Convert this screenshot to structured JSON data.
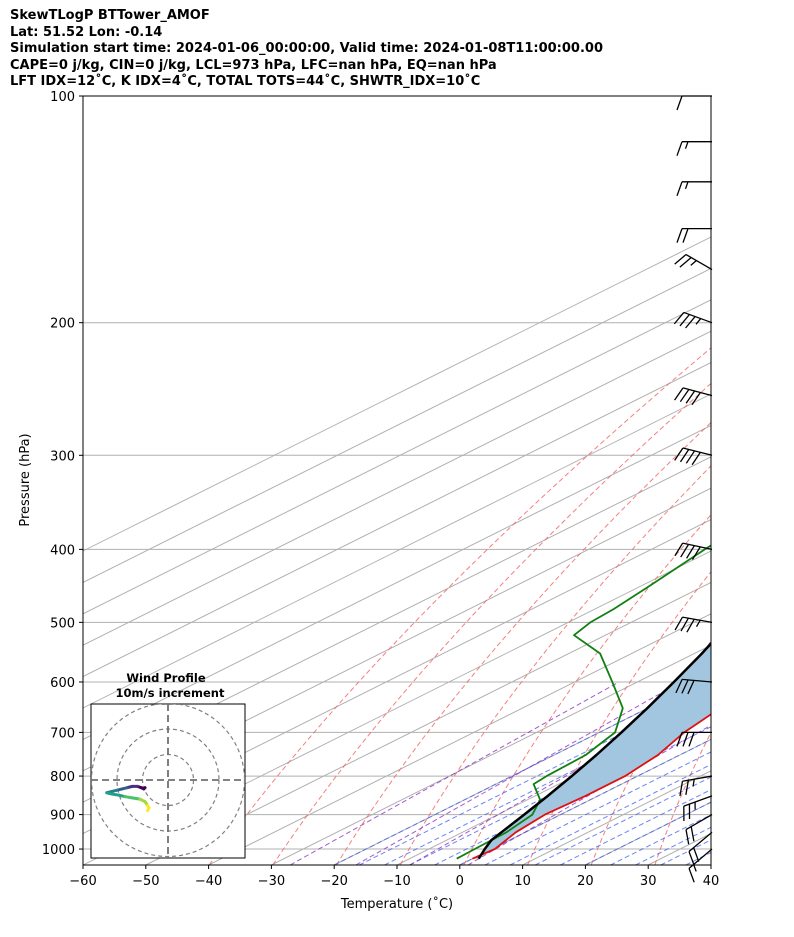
{
  "header": {
    "line1": "SkewTLogP BTTower_AMOF",
    "line2": "Lat: 51.52   Lon: -0.14",
    "line3": "Simulation start time: 2024-01-06_00:00:00, Valid time: 2024-01-08T11:00:00.00",
    "line4": "CAPE=0 j/kg, CIN=0 j/kg, LCL=973 hPa, LFC=nan hPa, EQ=nan hPa",
    "line5": "LFT IDX=12˚C, K IDX=4˚C, TOTAL TOTS=44˚C, SHWTR_IDX=10˚C"
  },
  "colors": {
    "temperature": "#e01010",
    "dewpoint": "#108010",
    "parcel": "#000000",
    "shade": "#a2c6df",
    "dry_adiabat": "#f06060",
    "moist_adiabat": "#3a5cf0",
    "mixing_ratio": "#9030c0",
    "isotherm": "#b0b0b0"
  },
  "chart_data": {
    "type": "line",
    "subtype": "skew-t log-p",
    "xlabel": "Temperature (˚C)",
    "ylabel": "Pressure (hPa)",
    "xlim": [
      -60,
      40
    ],
    "ylim": [
      1050,
      100
    ],
    "y_scale": "log",
    "x_ticks": [
      "−60",
      "−50",
      "−40",
      "−30",
      "−20",
      "−10",
      "0",
      "10",
      "20",
      "30",
      "40"
    ],
    "x_tick_values": [
      -60,
      -50,
      -40,
      -30,
      -20,
      -10,
      0,
      10,
      20,
      30,
      40
    ],
    "y_ticks": [
      "1000",
      "900",
      "800",
      "700",
      "600",
      "500",
      "400",
      "300",
      "200",
      "100"
    ],
    "y_tick_values": [
      1000,
      900,
      800,
      700,
      600,
      500,
      400,
      300,
      200,
      100
    ],
    "grid": true,
    "series": [
      {
        "key": "temperature",
        "points": [
          [
            1030,
            0.0
          ],
          [
            1000,
            0.5
          ],
          [
            950,
            -1.5
          ],
          [
            900,
            -2.5
          ],
          [
            850,
            -2.0
          ],
          [
            800,
            -2.0
          ],
          [
            750,
            -3.5
          ],
          [
            700,
            -6.5
          ],
          [
            650,
            -8.5
          ],
          [
            600,
            -11.5
          ],
          [
            550,
            -14.5
          ],
          [
            500,
            -17.5
          ],
          [
            450,
            -22.5
          ],
          [
            400,
            -28.5
          ],
          [
            370,
            -31.5
          ],
          [
            350,
            -33.5
          ],
          [
            330,
            -36.0
          ],
          [
            300,
            -40.0
          ],
          [
            270,
            -44.0
          ],
          [
            250,
            -48.0
          ],
          [
            220,
            -54.0
          ],
          [
            200,
            -57.0
          ],
          [
            190,
            -58.5
          ],
          [
            180,
            -60.0
          ],
          [
            170,
            -62.0
          ],
          [
            160,
            -64.0
          ],
          [
            150,
            -65.5
          ],
          [
            140,
            -67.0
          ],
          [
            130,
            -68.0
          ],
          [
            120,
            -70.0
          ],
          [
            110,
            -72.0
          ],
          [
            100,
            -73.5
          ]
        ]
      },
      {
        "key": "dewpoint",
        "points": [
          [
            1030,
            -2.5
          ],
          [
            1000,
            -2.7
          ],
          [
            950,
            -3.0
          ],
          [
            900,
            -4.5
          ],
          [
            860,
            -8.0
          ],
          [
            820,
            -14.0
          ],
          [
            800,
            -14.5
          ],
          [
            750,
            -15.0
          ],
          [
            700,
            -17.5
          ],
          [
            650,
            -24.0
          ],
          [
            600,
            -34.0
          ],
          [
            550,
            -45.0
          ],
          [
            520,
            -55.0
          ],
          [
            500,
            -56.5
          ],
          [
            480,
            -57.0
          ],
          [
            450,
            -58.5
          ],
          [
            400,
            -61.5
          ],
          [
            350,
            -64.5
          ],
          [
            300,
            -70.0
          ],
          [
            270,
            -72.5
          ],
          [
            250,
            -75.0
          ],
          [
            230,
            -78.0
          ],
          [
            210,
            -81.0
          ],
          [
            200,
            -83.0
          ],
          [
            190,
            -81.0
          ],
          [
            180,
            -78.0
          ],
          [
            170,
            -79.5
          ],
          [
            160,
            -80.5
          ],
          [
            150,
            -80.5
          ],
          [
            140,
            -81.0
          ],
          [
            120,
            -81.5
          ],
          [
            100,
            -82.0
          ]
        ]
      },
      {
        "key": "parcel",
        "points": [
          [
            1030,
            1.0
          ],
          [
            1000,
            -1.1
          ],
          [
            973,
            -2.9
          ],
          [
            950,
            -3.8
          ],
          [
            900,
            -5.8
          ],
          [
            850,
            -8.0
          ],
          [
            800,
            -10.5
          ],
          [
            750,
            -13.3
          ],
          [
            700,
            -16.5
          ],
          [
            650,
            -20.1
          ],
          [
            600,
            -24.2
          ],
          [
            550,
            -28.8
          ],
          [
            500,
            -34.2
          ],
          [
            450,
            -40.3
          ],
          [
            400,
            -47.3
          ],
          [
            350,
            -55.5
          ],
          [
            300,
            -65.0
          ],
          [
            250,
            -76.0
          ],
          [
            200,
            -90.0
          ],
          [
            150,
            -107.0
          ],
          [
            100,
            -130.0
          ]
        ]
      }
    ],
    "wind_barbs": [
      [
        1000,
        230,
        7
      ],
      [
        950,
        230,
        10
      ],
      [
        900,
        240,
        11
      ],
      [
        850,
        250,
        12
      ],
      [
        800,
        260,
        13
      ],
      [
        700,
        270,
        15
      ],
      [
        600,
        275,
        16
      ],
      [
        500,
        280,
        18
      ],
      [
        400,
        282,
        20
      ],
      [
        300,
        284,
        21
      ],
      [
        250,
        285,
        21
      ],
      [
        200,
        290,
        18
      ],
      [
        170,
        300,
        12
      ],
      [
        150,
        270,
        10
      ],
      [
        130,
        270,
        8
      ],
      [
        115,
        270,
        8
      ],
      [
        100,
        270,
        4
      ]
    ],
    "hodograph": {
      "title": "Wind Profile",
      "subtitle": "10m/s increment",
      "rings_ms": [
        10,
        20,
        30
      ],
      "points": [
        [
          -9,
          -3
        ],
        [
          -9.5,
          -3.5
        ],
        [
          -10.5,
          -3
        ],
        [
          -12,
          -2.5
        ],
        [
          -14,
          -2.5
        ],
        [
          -16,
          -3
        ],
        [
          -18,
          -3.5
        ],
        [
          -20,
          -4
        ],
        [
          -22,
          -4.5
        ],
        [
          -24,
          -5
        ],
        [
          -22,
          -5.5
        ],
        [
          -19,
          -6
        ],
        [
          -17,
          -6.5
        ],
        [
          -14,
          -7
        ],
        [
          -11,
          -7.5
        ],
        [
          -9,
          -8.5
        ],
        [
          -8,
          -10
        ],
        [
          -7.5,
          -11
        ],
        [
          -8,
          -12
        ]
      ]
    }
  }
}
